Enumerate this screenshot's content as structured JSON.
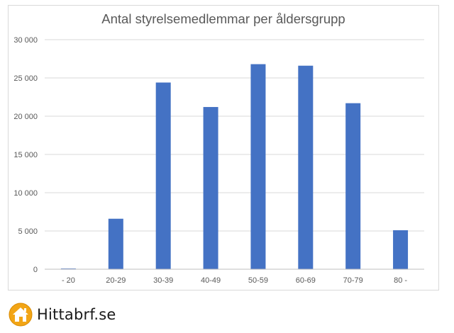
{
  "chart_data": {
    "type": "bar",
    "title": "Antal styrelsemedlemmar per åldersgrupp",
    "categories": [
      "- 20",
      "20-29",
      "30-39",
      "40-49",
      "50-59",
      "60-69",
      "70-79",
      "80 -"
    ],
    "values": [
      100,
      6600,
      24400,
      21200,
      26800,
      26600,
      21700,
      5100
    ],
    "ylim": [
      0,
      30000
    ],
    "yticks": [
      0,
      5000,
      10000,
      15000,
      20000,
      25000,
      30000
    ],
    "ytick_labels": [
      "0",
      "5 000",
      "10 000",
      "15 000",
      "20 000",
      "25 000",
      "30 000"
    ],
    "grid": true,
    "legend": "none",
    "bar_color": "#4472c4",
    "grid_color": "#d9d9d9",
    "axis_color": "#bfbfbf",
    "label_color": "#595959"
  },
  "brand": {
    "name": "Hittabrf.se",
    "icon": "house-logo-icon",
    "icon_color": "#f2a516"
  }
}
